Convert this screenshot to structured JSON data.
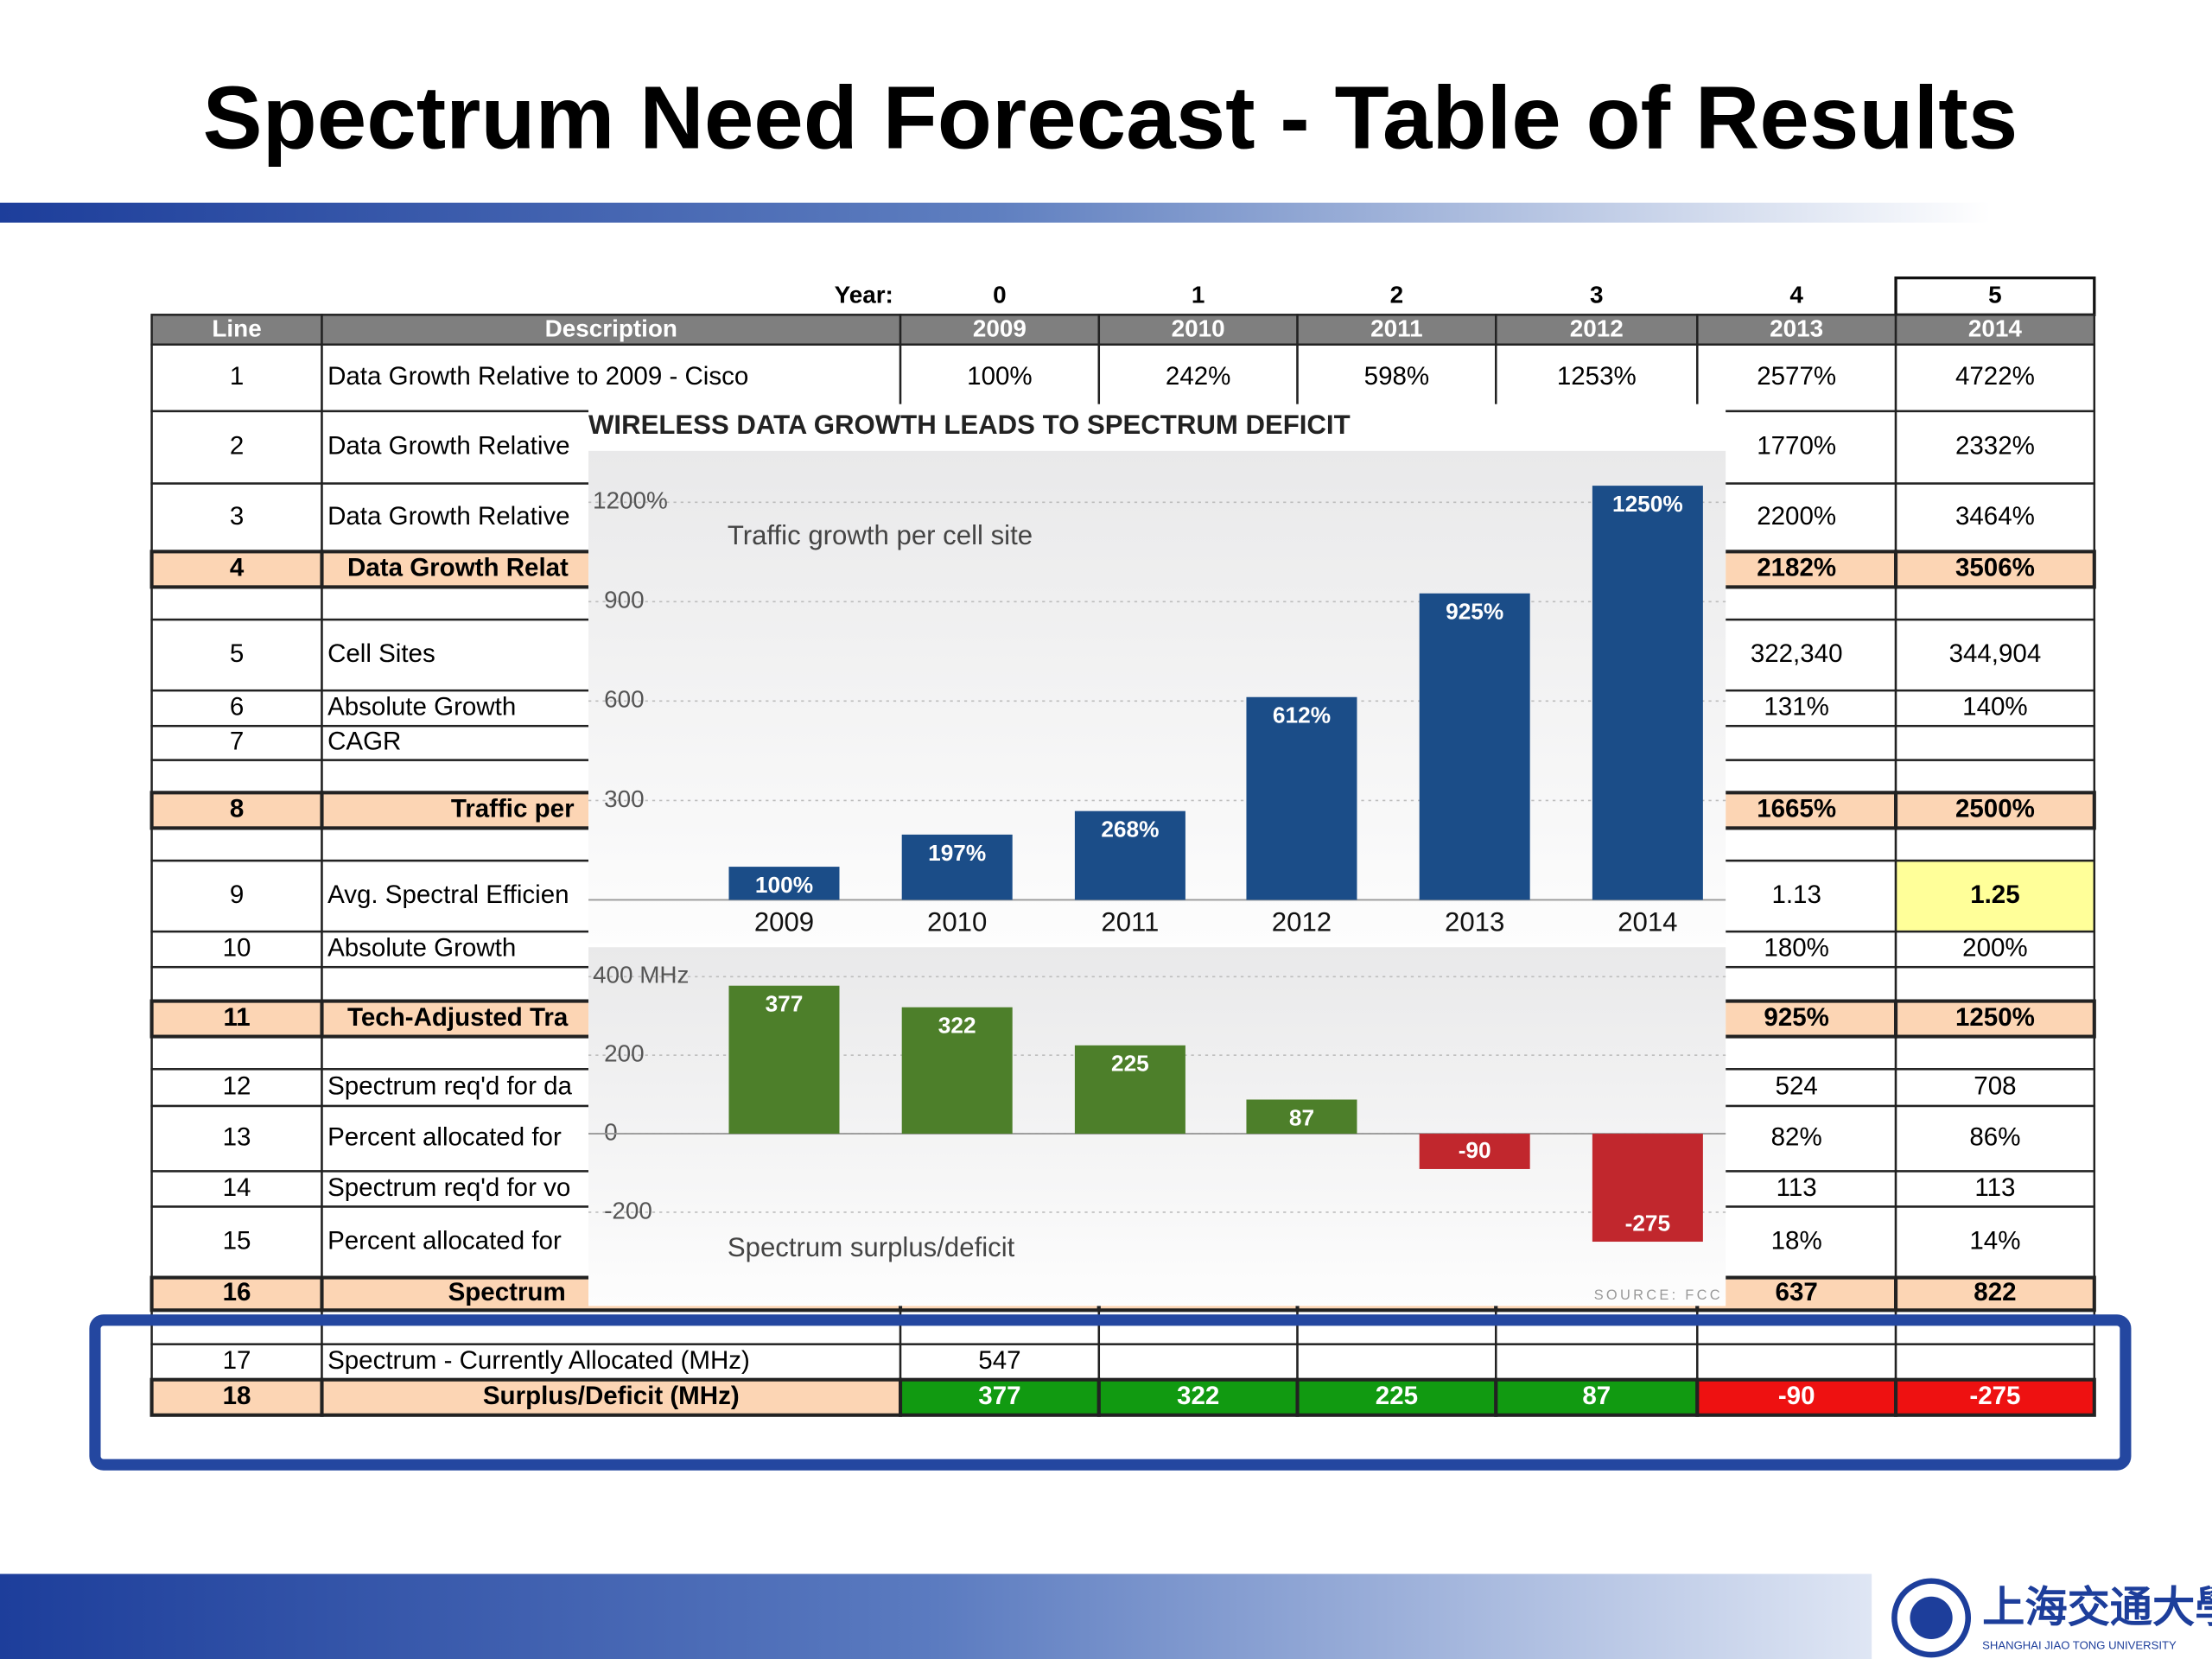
{
  "slide": {
    "title": "Spectrum Need Forecast - Table of Results"
  },
  "table": {
    "year_label": "Year:",
    "year_numbers": [
      "0",
      "1",
      "2",
      "3",
      "4",
      "5"
    ],
    "columns": [
      "Line",
      "Description",
      "2009",
      "2010",
      "2011",
      "2012",
      "2013",
      "2014"
    ],
    "rows": [
      {
        "line": "1",
        "description": "Data Growth Relative to 2009 - Cisco",
        "values": [
          "100%",
          "242%",
          "598%",
          "1253%",
          "2577%",
          "4722%"
        ]
      },
      {
        "line": "2",
        "description": "Data Growth Relative",
        "values": [
          null,
          null,
          null,
          null,
          "1770%",
          "2332%"
        ]
      },
      {
        "line": "3",
        "description": "Data Growth Relative",
        "values": [
          null,
          null,
          null,
          null,
          "2200%",
          "3464%"
        ]
      },
      {
        "line": "4",
        "description": "Data Growth Relat",
        "style": "total",
        "values": [
          null,
          null,
          null,
          null,
          "2182%",
          "3506%"
        ]
      },
      {
        "line": "5",
        "description": "Cell Sites",
        "values": [
          null,
          null,
          null,
          null,
          "322,340",
          "344,904"
        ]
      },
      {
        "line": "6",
        "description": "Absolute Growth",
        "values": [
          null,
          null,
          null,
          null,
          "131%",
          "140%"
        ]
      },
      {
        "line": "7",
        "description": "CAGR",
        "values": [
          null,
          null,
          null,
          null,
          null,
          null
        ]
      },
      {
        "line": "8",
        "description": "Traffic per",
        "style": "total",
        "values": [
          null,
          null,
          null,
          null,
          "1665%",
          "2500%"
        ]
      },
      {
        "line": "9",
        "description": "Avg. Spectral Efficien",
        "values": [
          null,
          null,
          null,
          null,
          "1.13",
          "1.25"
        ],
        "cell_colors": [
          null,
          null,
          null,
          null,
          null,
          "#ffff99"
        ]
      },
      {
        "line": "10",
        "description": "Absolute Growth",
        "values": [
          null,
          null,
          null,
          null,
          "180%",
          "200%"
        ]
      },
      {
        "line": "11",
        "description": "Tech-Adjusted Tra",
        "style": "total",
        "values": [
          null,
          null,
          null,
          null,
          "925%",
          "1250%"
        ]
      },
      {
        "line": "12",
        "description": "Spectrum req'd for da",
        "values": [
          null,
          null,
          null,
          null,
          "524",
          "708"
        ]
      },
      {
        "line": "13",
        "description": "Percent allocated for",
        "values": [
          null,
          null,
          null,
          null,
          "82%",
          "86%"
        ]
      },
      {
        "line": "14",
        "description": "Spectrum req'd for vo",
        "values": [
          null,
          null,
          null,
          null,
          "113",
          "113"
        ]
      },
      {
        "line": "15",
        "description": "Percent allocated for",
        "values": [
          null,
          null,
          null,
          null,
          "18%",
          "14%"
        ]
      },
      {
        "line": "16",
        "description": "Spectrum",
        "style": "total",
        "values": [
          null,
          null,
          null,
          null,
          "637",
          "822"
        ]
      },
      {
        "line": "17",
        "description": "Spectrum - Currently Allocated (MHz)",
        "values": [
          "547",
          null,
          null,
          null,
          null,
          null
        ]
      },
      {
        "line": "18",
        "description": "Surplus/Deficit (MHz)",
        "style": "total",
        "values": [
          "377",
          "322",
          "225",
          "87",
          "-90",
          "-275"
        ],
        "cell_colors": [
          "#119a11",
          "#119a11",
          "#119a11",
          "#119a11",
          "#ee1111",
          "#ee1111"
        ]
      }
    ]
  },
  "chart_data": [
    {
      "type": "bar",
      "title": "WIRELESS DATA GROWTH LEADS TO SPECTRUM DEFICIT",
      "label": "Traffic growth per cell site",
      "categories": [
        "2009",
        "2010",
        "2011",
        "2012",
        "2013",
        "2014"
      ],
      "values": [
        100,
        197,
        268,
        612,
        925,
        1250
      ],
      "value_labels": [
        "100%",
        "197%",
        "268%",
        "612%",
        "925%",
        "1250%"
      ],
      "color": "#1b4d88",
      "ylim": [
        -130,
        1355
      ],
      "yticks": [
        300,
        600,
        900,
        {
          "value": 1200,
          "label": "1200%"
        }
      ],
      "grid": true
    },
    {
      "type": "bar",
      "label": "Spectrum surplus/deficit",
      "source": "SOURCE: FCC",
      "values": [
        377,
        322,
        225,
        87,
        -90,
        -275
      ],
      "colors": [
        "#4d7f2a",
        "#4d7f2a",
        "#4d7f2a",
        "#4d7f2a",
        "#c1272d",
        "#c1272d"
      ],
      "ylim": [
        -435,
        475
      ],
      "yticks": [
        -200,
        0,
        200,
        {
          "value": 400,
          "label": "400 MHz"
        }
      ],
      "grid": true
    }
  ],
  "logo": {
    "name_cn": "上海交通大學",
    "name_en": "SHANGHAI JIAO TONG UNIVERSITY"
  }
}
